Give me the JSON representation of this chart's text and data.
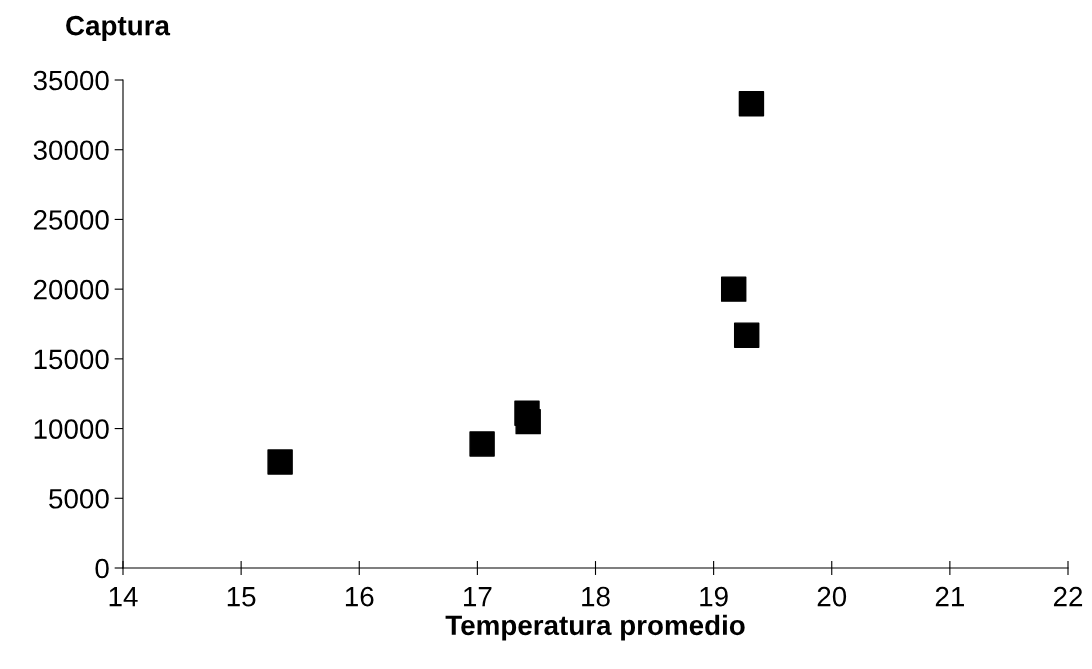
{
  "chart_data": {
    "type": "scatter",
    "ylabel": "Captura",
    "xlabel": "Temperatura promedio",
    "x": [
      15.33,
      17.04,
      17.42,
      17.43,
      19.17,
      19.28,
      19.32
    ],
    "values": [
      7600,
      8900,
      11100,
      10500,
      20000,
      16700,
      33300
    ],
    "color": "#000000",
    "marker": "square",
    "xlim": [
      14,
      22
    ],
    "xticks": [
      14,
      15,
      16,
      17,
      18,
      19,
      20,
      21,
      22
    ],
    "ylim": [
      0,
      35000
    ],
    "yticks": [
      0,
      5000,
      10000,
      15000,
      20000,
      25000,
      30000,
      35000
    ],
    "grid": false
  }
}
